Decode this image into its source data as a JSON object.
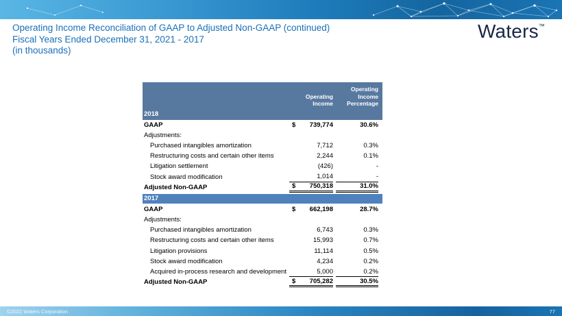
{
  "colors": {
    "accent_blue": "#1a70b8",
    "table_header_bg": "#58799f",
    "year_bar_bg": "#4f81bd",
    "logo_navy": "#1a2744"
  },
  "slide": {
    "title_line1": "Operating Income Reconciliation of GAAP to Adjusted Non-GAAP (continued)",
    "title_line2": "Fiscal Years Ended December 31, 2021 - 2017",
    "title_line3": "(in thousands)",
    "logo_text": "Waters",
    "logo_trademark": "™",
    "footer_copyright": "©2022 Waters Corporation",
    "page_number": "77"
  },
  "table": {
    "col_header_income": "Operating\nIncome",
    "col_header_percentage": "Operating\nIncome\nPercentage",
    "sections": [
      {
        "year": "2018",
        "rows": [
          {
            "label": "GAAP",
            "dollar": "$",
            "value": "739,774",
            "pct": "30.6%",
            "bold": true
          },
          {
            "label": "Adjustments:",
            "dollar": "",
            "value": "",
            "pct": ""
          },
          {
            "label": "Purchased intangibles amortization",
            "dollar": "",
            "value": "7,712",
            "pct": "0.3%",
            "indent": true
          },
          {
            "label": "Restructuring costs and certain other items",
            "dollar": "",
            "value": "2,244",
            "pct": "0.1%",
            "indent": true
          },
          {
            "label": "Litigation settlement",
            "dollar": "",
            "value": "(426)",
            "pct": "-",
            "indent": true
          },
          {
            "label": "Stock award modification",
            "dollar": "",
            "value": "1,014",
            "pct": "-",
            "indent": true,
            "sumline": true
          },
          {
            "label": "Adjusted Non-GAAP",
            "dollar": "$",
            "value": "750,318",
            "pct": "31.0%",
            "bold": true,
            "total": true
          }
        ]
      },
      {
        "year": "2017",
        "rows": [
          {
            "label": "GAAP",
            "dollar": "$",
            "value": "662,198",
            "pct": "28.7%",
            "bold": true
          },
          {
            "label": "Adjustments:",
            "dollar": "",
            "value": "",
            "pct": ""
          },
          {
            "label": "Purchased intangibles amortization",
            "dollar": "",
            "value": "6,743",
            "pct": "0.3%",
            "indent": true
          },
          {
            "label": "Restructuring costs and certain other items",
            "dollar": "",
            "value": "15,993",
            "pct": "0.7%",
            "indent": true
          },
          {
            "label": "Litigation provisions",
            "dollar": "",
            "value": "11,114",
            "pct": "0.5%",
            "indent": true
          },
          {
            "label": "Stock award modification",
            "dollar": "",
            "value": "4,234",
            "pct": "0.2%",
            "indent": true
          },
          {
            "label": "Acquired in-process research and development",
            "dollar": "",
            "value": "5,000",
            "pct": "0.2%",
            "indent": true,
            "sumline": true
          },
          {
            "label": "Adjusted Non-GAAP",
            "dollar": "$",
            "value": "705,282",
            "pct": "30.5%",
            "bold": true,
            "total": true
          }
        ]
      }
    ]
  }
}
